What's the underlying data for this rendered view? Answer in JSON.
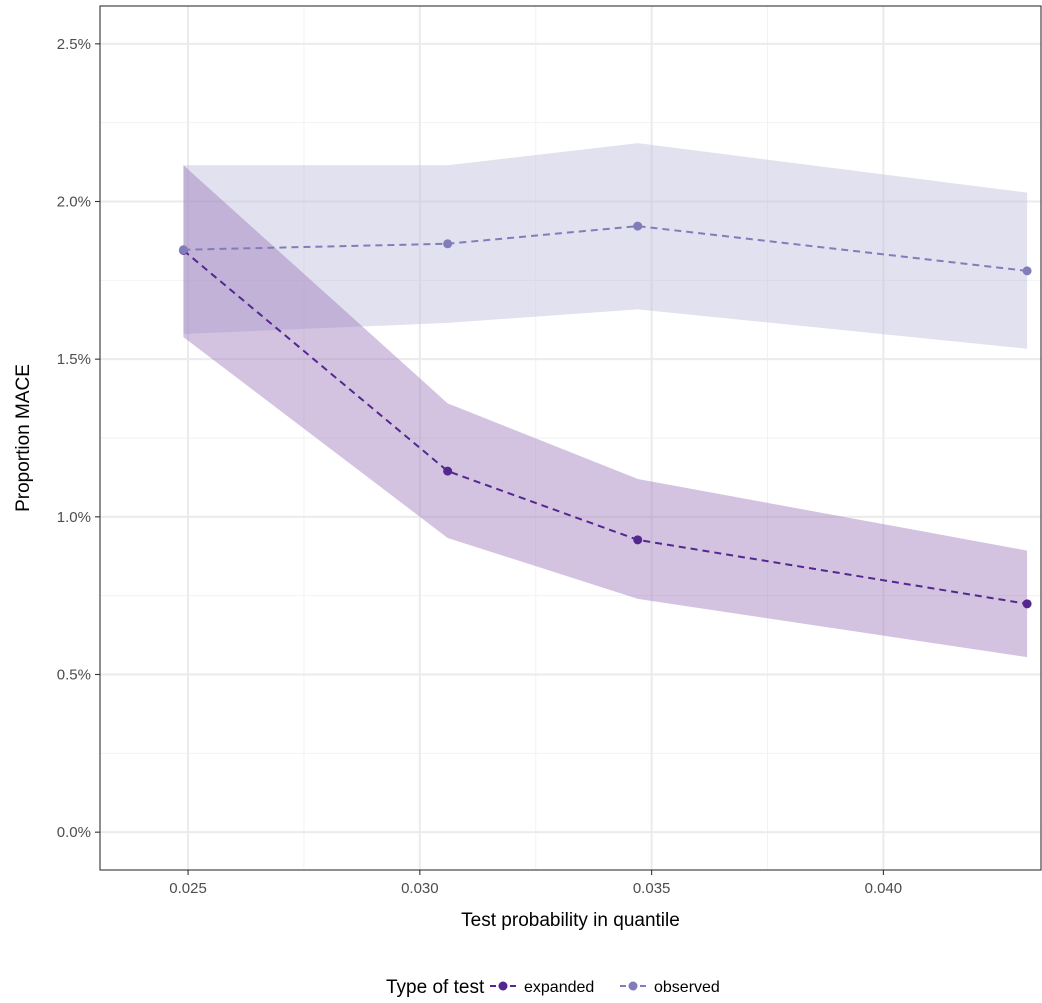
{
  "chart_data": {
    "type": "line",
    "xlabel": "Test probability in quantile",
    "ylabel": "Proportion MACE",
    "xlim": [
      0.0231,
      0.0434
    ],
    "ylim": [
      -0.0012,
      0.0262
    ],
    "x_ticks": [
      0.025,
      0.03,
      0.035,
      0.04
    ],
    "x_tick_labels": [
      "0.025",
      "0.030",
      "0.035",
      "0.040"
    ],
    "y_ticks": [
      0.0,
      0.005,
      0.01,
      0.015,
      0.02,
      0.025
    ],
    "y_tick_labels": [
      "0.0%",
      "0.5%",
      "1.0%",
      "1.5%",
      "2.0%",
      "2.5%"
    ],
    "grid": true,
    "legend": {
      "title": "Type of test",
      "position": "bottom"
    },
    "series": [
      {
        "name": "expanded",
        "color": "#54278f",
        "ribbon_color": "#9e7bbd",
        "x": [
          0.0249,
          0.0306,
          0.0347,
          0.0431
        ],
        "y": [
          0.01845,
          0.01145,
          0.00927,
          0.00724
        ],
        "lower": [
          0.0157,
          0.00933,
          0.0074,
          0.00555
        ],
        "upper": [
          0.02115,
          0.0136,
          0.0112,
          0.00893
        ]
      },
      {
        "name": "observed",
        "color": "#807dba",
        "ribbon_color": "#bcbddc",
        "x": [
          0.0249,
          0.0306,
          0.0347,
          0.0431
        ],
        "y": [
          0.01847,
          0.01866,
          0.01922,
          0.0178
        ],
        "lower": [
          0.0158,
          0.01615,
          0.01658,
          0.01533
        ],
        "upper": [
          0.02115,
          0.02115,
          0.02185,
          0.02028
        ]
      }
    ]
  }
}
